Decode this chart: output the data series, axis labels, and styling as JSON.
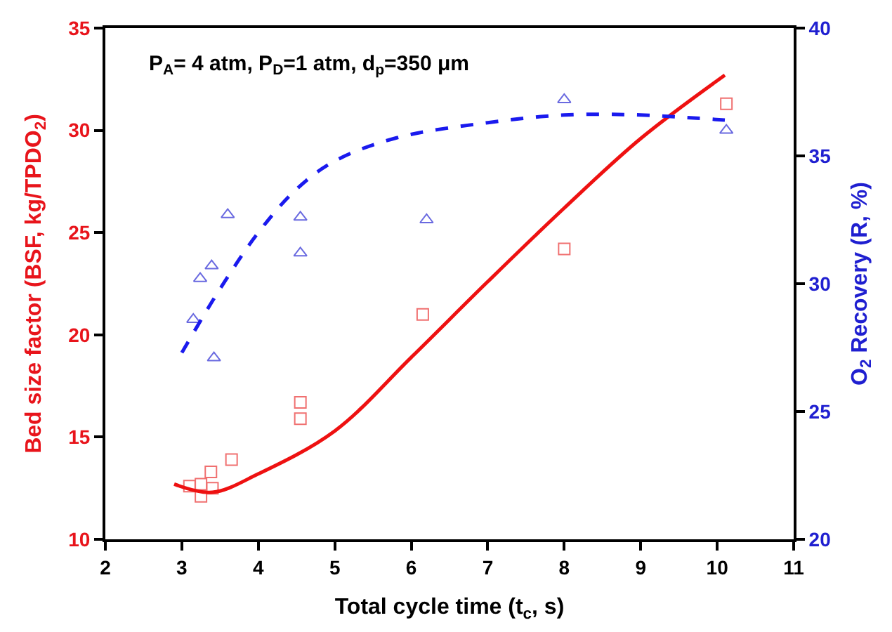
{
  "chart_data": {
    "type": "scatter",
    "xlabel": "Total cycle time (t$_{c}$, s)",
    "ylabel": "Bed size factor (BSF, kg/TPDO$_{2}$)",
    "y2label": "O$_{2}$ Recovery (R, %)",
    "annotations": [
      "P$_{A}$= 4 atm, P$_{D}$=1 atm, d$_{p}$=350 μm"
    ],
    "xlim": [
      2,
      11
    ],
    "xticks": [
      2,
      3,
      4,
      5,
      6,
      7,
      8,
      9,
      10,
      11
    ],
    "ylim": [
      10,
      35
    ],
    "yticks": [
      10,
      15,
      20,
      25,
      30,
      35
    ],
    "y2lim": [
      20,
      40
    ],
    "y2ticks": [
      20,
      25,
      30,
      35,
      40
    ],
    "series": [
      {
        "marker": "square",
        "color": "#f07070",
        "x": [
          10.12,
          8.0,
          6.15,
          4.55,
          4.55,
          3.65,
          3.38,
          3.25,
          3.1,
          3.25,
          3.4
        ],
        "values": [
          31.3,
          24.2,
          21.0,
          16.7,
          15.9,
          13.9,
          13.3,
          12.7,
          12.6,
          12.1,
          12.5
        ]
      },
      {
        "marker": "triangle",
        "color": "#6a6ae0",
        "axis": "y2",
        "x": [
          8.0,
          10.12,
          3.6,
          4.55,
          6.2,
          4.55,
          3.39,
          3.24,
          3.15,
          3.42
        ],
        "values": [
          37.2,
          36.0,
          32.7,
          32.6,
          32.5,
          31.2,
          30.7,
          30.2,
          28.6,
          27.1
        ]
      },
      {
        "type": "line",
        "marker": "none",
        "line_style": "solid",
        "color": "#ee1111",
        "x": [
          2.9,
          3.4,
          4.0,
          5.0,
          6.0,
          7.0,
          8.0,
          9.0,
          10.1
        ],
        "values": [
          12.7,
          12.3,
          13.2,
          15.3,
          18.9,
          22.6,
          26.2,
          29.6,
          32.7
        ]
      },
      {
        "type": "line",
        "marker": "none",
        "line_style": "dashed",
        "color": "#1a1aee",
        "axis": "y2",
        "x": [
          3.0,
          3.5,
          4.0,
          4.5,
          5.0,
          5.8,
          7.0,
          8.0,
          9.0,
          9.6,
          10.1
        ],
        "values": [
          27.3,
          29.8,
          32.0,
          33.7,
          34.8,
          35.7,
          36.3,
          36.6,
          36.6,
          36.5,
          36.4
        ]
      }
    ]
  }
}
